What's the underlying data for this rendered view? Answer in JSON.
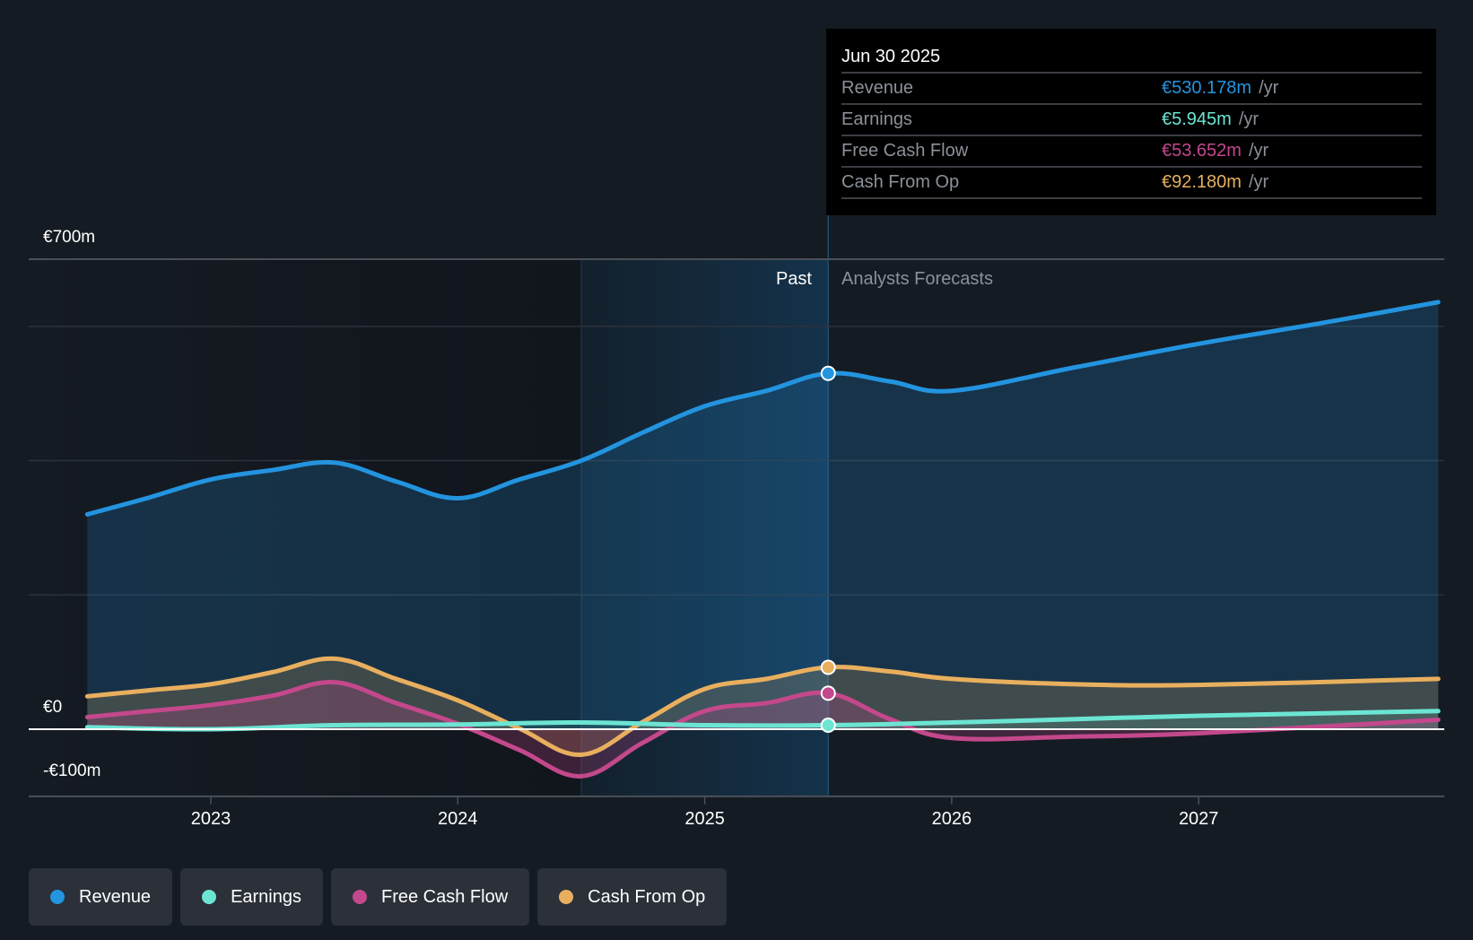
{
  "tooltip": {
    "date": "Jun 30 2025",
    "rows": [
      {
        "name": "Revenue",
        "value": "€530.178m",
        "unit": "/yr",
        "color": "#2394df"
      },
      {
        "name": "Earnings",
        "value": "€5.945m",
        "unit": "/yr",
        "color": "#6ce5d3"
      },
      {
        "name": "Free Cash Flow",
        "value": "€53.652m",
        "unit": "/yr",
        "color": "#c3488c"
      },
      {
        "name": "Cash From Op",
        "value": "€92.180m",
        "unit": "/yr",
        "color": "#e8af5e"
      }
    ]
  },
  "regions": {
    "past": "Past",
    "forecast": "Analysts Forecasts"
  },
  "legend": [
    {
      "label": "Revenue",
      "color": "#2394df"
    },
    {
      "label": "Earnings",
      "color": "#6ce5d3"
    },
    {
      "label": "Free Cash Flow",
      "color": "#c3488c"
    },
    {
      "label": "Cash From Op",
      "color": "#e8af5e"
    }
  ],
  "chart_data": {
    "type": "line",
    "title": "",
    "xlabel": "",
    "ylabel": "",
    "y_tick_labels": [
      {
        "value": 700,
        "label": "€700m"
      },
      {
        "value": 0,
        "label": "€0"
      },
      {
        "value": -100,
        "label": "-€100m"
      }
    ],
    "gridlines": [
      700,
      600,
      400,
      200,
      0,
      -100
    ],
    "x_tick_labels": [
      {
        "value": 2023,
        "label": "2023"
      },
      {
        "value": 2024,
        "label": "2024"
      },
      {
        "value": 2025,
        "label": "2025"
      },
      {
        "value": 2026,
        "label": "2026"
      },
      {
        "value": 2027,
        "label": "2027"
      }
    ],
    "xlim": [
      2022.24,
      2027.97
    ],
    "ylim": [
      -100,
      700
    ],
    "past_highlight": [
      2024.5,
      2025.5
    ],
    "forecast_start": 2025.5,
    "series": [
      {
        "name": "Revenue",
        "color": "#2394df",
        "x": [
          2022.5,
          2022.75,
          2023,
          2023.25,
          2023.5,
          2023.75,
          2024,
          2024.25,
          2024.5,
          2024.75,
          2025,
          2025.25,
          2025.5,
          2025.75,
          2026,
          2026.5,
          2027,
          2027.5,
          2027.97
        ],
        "values": [
          320,
          345,
          372,
          386,
          397,
          369,
          344,
          372,
          400,
          442,
          481,
          504,
          530,
          518,
          504,
          539,
          574,
          605,
          636
        ]
      },
      {
        "name": "Earnings",
        "color": "#6ce5d3",
        "x": [
          2022.5,
          2023,
          2023.5,
          2024,
          2024.5,
          2025,
          2025.5,
          2026,
          2026.5,
          2027,
          2027.97
        ],
        "values": [
          3,
          0,
          6,
          7,
          10,
          6,
          5.945,
          10,
          15,
          20,
          27
        ]
      },
      {
        "name": "Free Cash Flow",
        "color": "#c3488c",
        "x": [
          2022.5,
          2022.75,
          2023,
          2023.25,
          2023.5,
          2023.75,
          2024,
          2024.25,
          2024.5,
          2024.75,
          2025,
          2025.25,
          2025.5,
          2025.75,
          2026,
          2026.5,
          2027,
          2027.97
        ],
        "values": [
          18,
          27,
          36,
          50,
          70,
          39,
          8,
          -31,
          -70,
          -20,
          27,
          39,
          53.652,
          15,
          -13,
          -11,
          -6,
          14
        ]
      },
      {
        "name": "Cash From Op",
        "color": "#e8af5e",
        "x": [
          2022.5,
          2022.75,
          2023,
          2023.25,
          2023.5,
          2023.75,
          2024,
          2024.25,
          2024.5,
          2024.75,
          2025,
          2025.25,
          2025.5,
          2025.75,
          2026,
          2026.5,
          2027,
          2027.97
        ],
        "values": [
          49,
          58,
          67,
          85,
          105,
          75,
          43,
          1,
          -38,
          11,
          60,
          75,
          92.18,
          86,
          75,
          67,
          66,
          75
        ]
      }
    ]
  }
}
